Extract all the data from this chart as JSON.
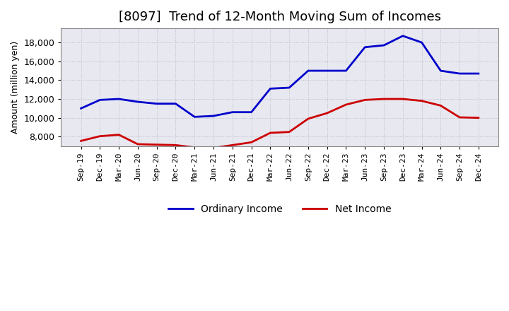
{
  "title": "[8097]  Trend of 12-Month Moving Sum of Incomes",
  "ylabel": "Amount (million yen)",
  "x_labels": [
    "Sep-19",
    "Dec-19",
    "Mar-20",
    "Jun-20",
    "Sep-20",
    "Dec-20",
    "Mar-21",
    "Jun-21",
    "Sep-21",
    "Dec-21",
    "Mar-22",
    "Jun-22",
    "Sep-22",
    "Dec-22",
    "Mar-23",
    "Jun-23",
    "Sep-23",
    "Dec-23",
    "Mar-24",
    "Jun-24",
    "Sep-24",
    "Dec-24"
  ],
  "ordinary_income": [
    11000,
    11900,
    12000,
    11700,
    11500,
    11500,
    10100,
    10200,
    10600,
    10600,
    13100,
    13200,
    15000,
    15000,
    15000,
    17500,
    17700,
    18700,
    18000,
    15000,
    14700,
    14700
  ],
  "net_income": [
    7550,
    8050,
    8200,
    7200,
    7150,
    7100,
    6850,
    6800,
    7100,
    7400,
    8400,
    8500,
    9900,
    10500,
    11400,
    11900,
    12000,
    12000,
    11800,
    11300,
    10050,
    10000
  ],
  "ordinary_color": "#0000cc",
  "net_color": "#cc0000",
  "ylim_min": 7000,
  "ylim_max": 19500,
  "yticks": [
    8000,
    10000,
    12000,
    14000,
    16000,
    18000
  ],
  "background_color": "#FFFFFF",
  "plot_bg_color": "#E8E8F0",
  "grid_color": "#BBBBCC",
  "spine_color": "#888888",
  "title_fontsize": 13,
  "legend_fontsize": 10,
  "ylabel_fontsize": 9,
  "xtick_fontsize": 8,
  "ytick_fontsize": 9
}
